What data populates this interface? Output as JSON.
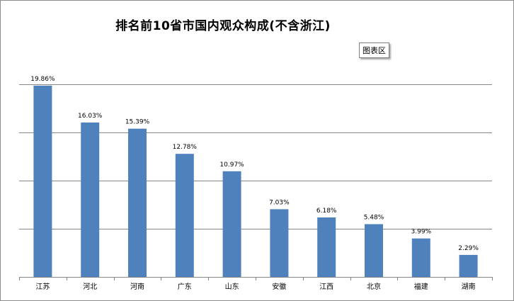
{
  "tooltip": "图表区",
  "chart_data": {
    "type": "bar",
    "title": "排名前10省市国内观众构成(不含浙江)",
    "categories": [
      "江苏",
      "河北",
      "河南",
      "广东",
      "山东",
      "安徽",
      "江西",
      "北京",
      "福建",
      "湖南"
    ],
    "values": [
      19.86,
      16.03,
      15.39,
      12.78,
      10.97,
      7.03,
      6.18,
      5.48,
      3.99,
      2.29
    ],
    "value_labels": [
      "19.86%",
      "16.03%",
      "15.39%",
      "12.78%",
      "10.97%",
      "7.03%",
      "6.18%",
      "5.48%",
      "3.99%",
      "2.29%"
    ],
    "ylim": [
      0,
      20
    ],
    "grid": true,
    "bar_color": "#4f81bd"
  }
}
